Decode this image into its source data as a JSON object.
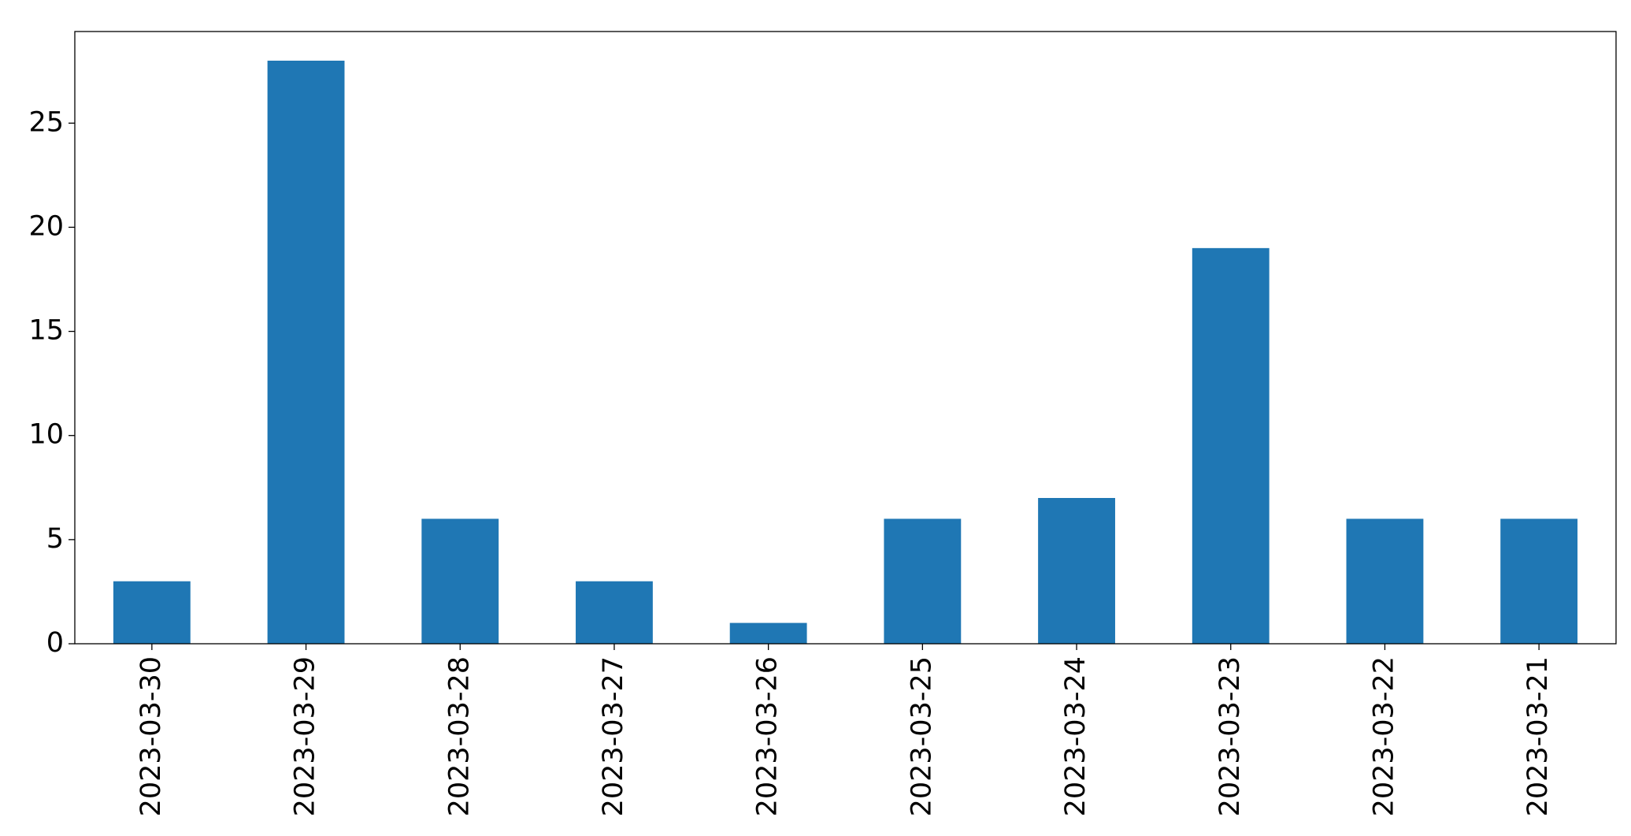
{
  "chart_data": {
    "type": "bar",
    "categories": [
      "2023-03-30",
      "2023-03-29",
      "2023-03-28",
      "2023-03-27",
      "2023-03-26",
      "2023-03-25",
      "2023-03-24",
      "2023-03-23",
      "2023-03-22",
      "2023-03-21"
    ],
    "values": [
      3,
      28,
      6,
      3,
      1,
      6,
      7,
      19,
      6,
      6
    ],
    "color": "#1f77b4",
    "ylim": [
      0,
      29.4
    ],
    "yticks": [
      0,
      5,
      10,
      15,
      20,
      25
    ],
    "grid": false
  }
}
